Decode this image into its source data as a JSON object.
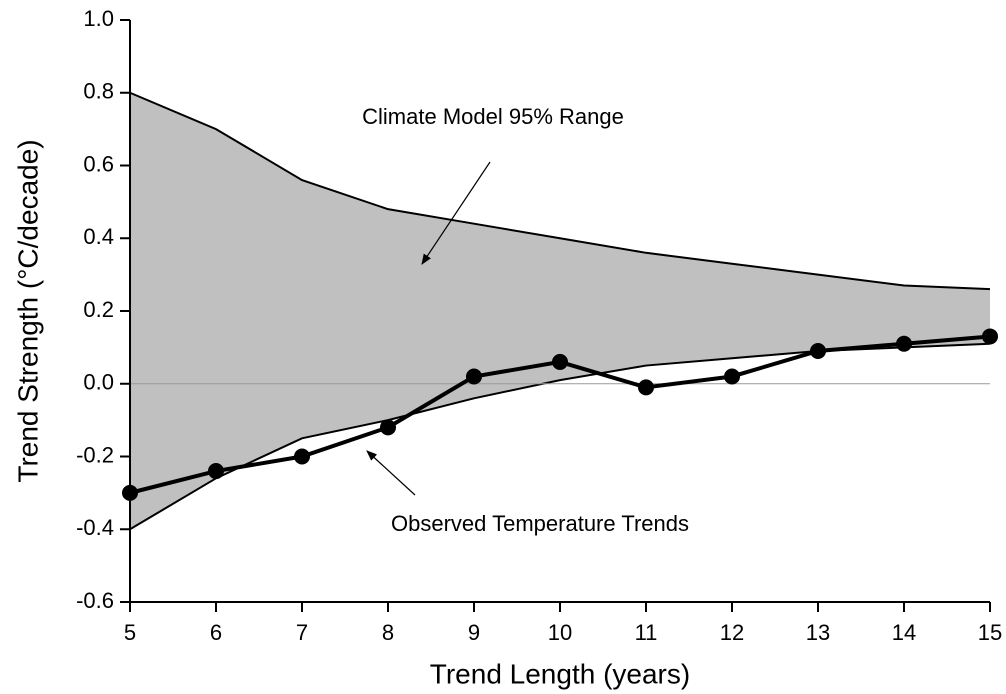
{
  "chart_data": {
    "type": "line",
    "x_label": "Trend Length (years)",
    "y_label": "Trend Strength (°C/decade)",
    "x": [
      5,
      6,
      7,
      8,
      9,
      10,
      11,
      12,
      13,
      14,
      15
    ],
    "band": {
      "color": "#c0c0c0",
      "upper": [
        0.8,
        0.7,
        0.56,
        0.48,
        0.44,
        0.4,
        0.36,
        0.33,
        0.3,
        0.27,
        0.26
      ],
      "lower": [
        -0.4,
        -0.26,
        -0.15,
        -0.1,
        -0.04,
        0.01,
        0.05,
        0.07,
        0.09,
        0.1,
        0.11
      ]
    },
    "observed": {
      "color": "#000000",
      "values": [
        -0.3,
        -0.24,
        -0.2,
        -0.12,
        0.02,
        0.06,
        -0.01,
        0.02,
        0.09,
        0.11,
        0.13
      ]
    },
    "annotations": [
      "Climate Model 95% Range",
      "Observed Temperature Trends"
    ],
    "xlim": [
      5,
      15
    ],
    "xticks": [
      5,
      6,
      7,
      8,
      9,
      10,
      11,
      12,
      13,
      14,
      15
    ],
    "ylim": [
      -0.6,
      1.0
    ],
    "yticks": [
      -0.6,
      -0.4,
      -0.2,
      {
        "value": 0,
        "label": "0.0"
      },
      0.2,
      0.4,
      0.6,
      0.8,
      {
        "value": 1,
        "label": "1.0"
      }
    ],
    "zero_line": true
  }
}
